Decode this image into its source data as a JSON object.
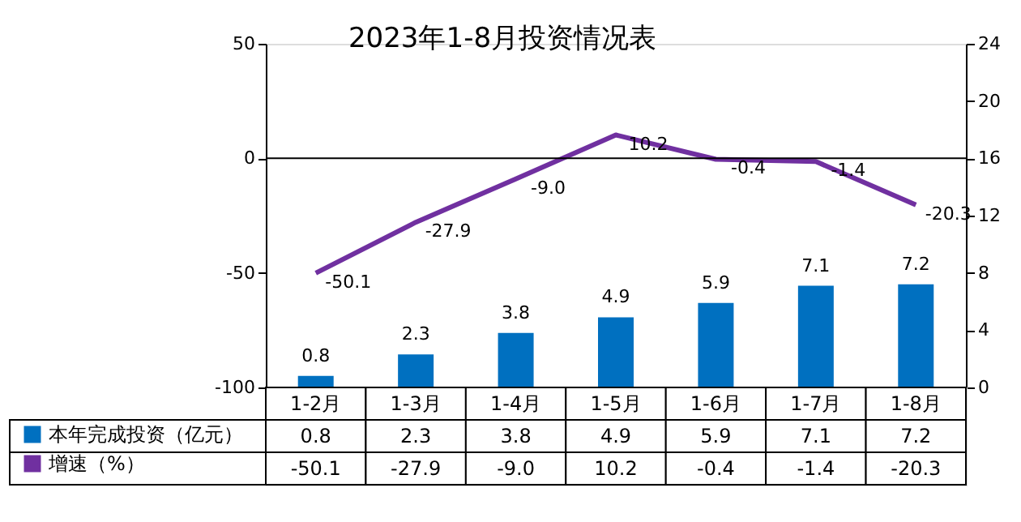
{
  "chart_data": {
    "type": "bar",
    "title": "2023年1-8月投资情况表",
    "categories": [
      "1-2月",
      "1-3月",
      "1-4月",
      "1-5月",
      "1-6月",
      "1-7月",
      "1-8月"
    ],
    "series": [
      {
        "name": "本年完成投资（亿元）",
        "axis": "y2",
        "color": "#0070c0",
        "values": [
          0.8,
          2.3,
          3.8,
          4.9,
          5.9,
          7.1,
          7.2
        ],
        "value_labels": [
          "0.8",
          "2.3",
          "3.8",
          "4.9",
          "5.9",
          "7.1",
          "7.2"
        ]
      },
      {
        "name": "增速（%）",
        "type": "line",
        "color": "#7030a0",
        "values": [
          -50.1,
          -27.9,
          -9.0,
          10.2,
          -0.4,
          -1.4,
          -20.3
        ],
        "value_labels": [
          "-50.1",
          "-27.9",
          "-9.0",
          "10.2",
          "-0.4",
          "-1.4",
          "-20.3"
        ]
      }
    ],
    "ylim": [
      -100,
      50
    ],
    "yticks": [
      -100,
      -50,
      0,
      50
    ],
    "y2lim": [
      0,
      24
    ],
    "y2ticks": [
      0,
      4,
      8,
      12,
      16,
      20,
      24
    ],
    "ref_lines": [
      {
        "axis": "y",
        "value": 0,
        "color": "#000000"
      }
    ],
    "grid": false,
    "legend": "bottom",
    "marker": "none"
  }
}
